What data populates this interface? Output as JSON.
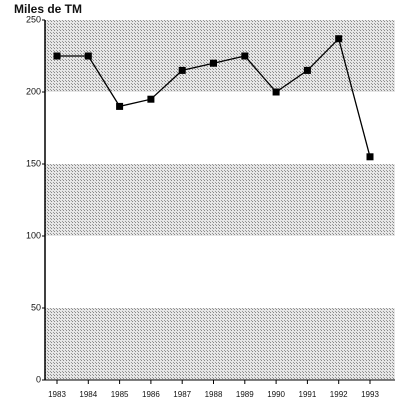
{
  "chart_data": {
    "type": "line",
    "title": "Miles de TM",
    "categories": [
      "1983",
      "1984",
      "1985",
      "1986",
      "1987",
      "1988",
      "1989",
      "1990",
      "1991",
      "1992",
      "1993"
    ],
    "values": [
      225,
      225,
      190,
      195,
      215,
      220,
      225,
      200,
      215,
      237,
      155
    ],
    "color": "#000000",
    "ylim": [
      0,
      250
    ],
    "yticks": [
      0,
      50,
      100,
      150,
      200,
      250
    ],
    "band_color": "#c8c8c8"
  }
}
